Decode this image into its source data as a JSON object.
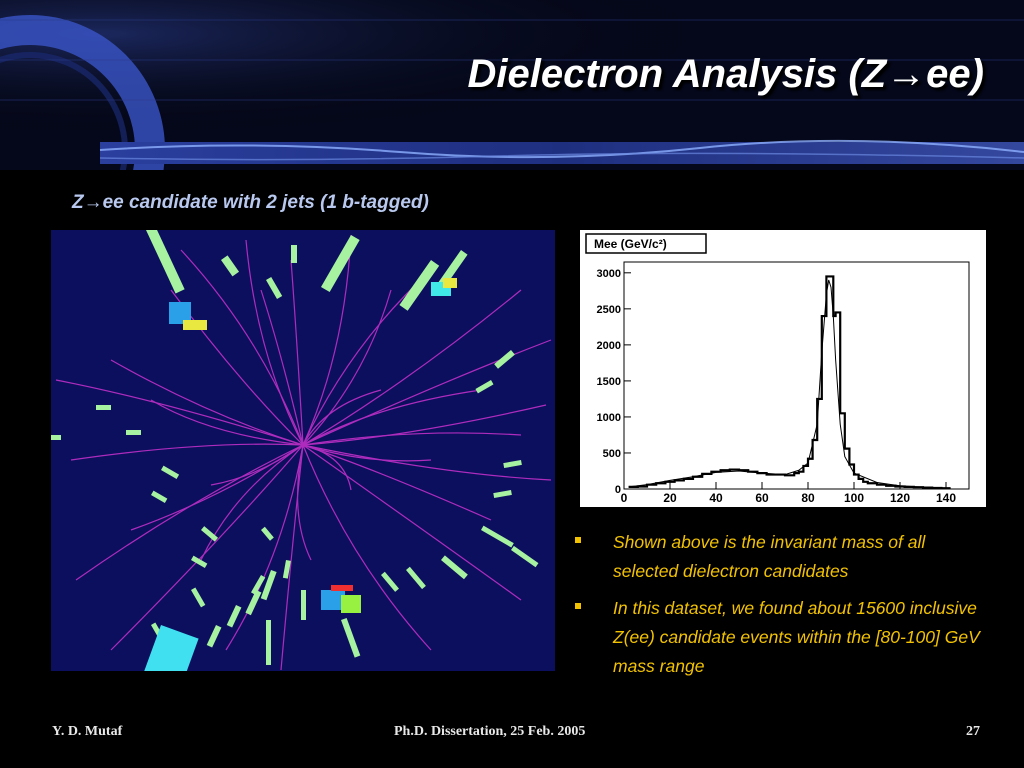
{
  "slide": {
    "title": "Dielectron Analysis (Z→ee)",
    "subtitle": "Z→ee candidate with 2 jets (1 b-tagged)"
  },
  "histogram": {
    "label": "Mee (GeV/c²)",
    "x_ticks": [
      "0",
      "20",
      "40",
      "60",
      "80",
      "100",
      "120",
      "140"
    ],
    "y_ticks": [
      "0",
      "500",
      "1000",
      "1500",
      "2000",
      "2500",
      "3000"
    ]
  },
  "chart_data": {
    "type": "line",
    "title": "Mee (GeV/c²)",
    "xlabel": "",
    "ylabel": "",
    "xlim": [
      0,
      150
    ],
    "ylim": [
      0,
      3150
    ],
    "series": [
      {
        "x": [
          2,
          6,
          10,
          14,
          18,
          22,
          26,
          30,
          34,
          38,
          42,
          46,
          50,
          54,
          58,
          62,
          66,
          70,
          74,
          76,
          78,
          80,
          82,
          84,
          86,
          88,
          89,
          90,
          91,
          92,
          94,
          96,
          98,
          100,
          102,
          104,
          106,
          110,
          114,
          118,
          122,
          126,
          130,
          134,
          138,
          142
        ],
        "y": [
          30,
          35,
          60,
          80,
          100,
          120,
          140,
          170,
          210,
          240,
          260,
          270,
          260,
          240,
          220,
          200,
          200,
          190,
          220,
          240,
          320,
          420,
          680,
          1250,
          2400,
          2950,
          2950,
          2950,
          2400,
          2450,
          1050,
          560,
          340,
          200,
          140,
          100,
          80,
          60,
          45,
          35,
          30,
          25,
          20,
          15,
          10,
          10
        ]
      },
      {
        "x": [
          2,
          10,
          20,
          30,
          40,
          50,
          60,
          70,
          76,
          80,
          84,
          86,
          88,
          89,
          90,
          91,
          92,
          94,
          96,
          100,
          110,
          120,
          130,
          142
        ],
        "y": [
          30,
          60,
          120,
          170,
          230,
          250,
          220,
          200,
          260,
          360,
          900,
          1900,
          2700,
          2900,
          2800,
          2400,
          1800,
          900,
          450,
          220,
          90,
          45,
          25,
          10
        ]
      }
    ]
  },
  "notes": [
    "Shown above is the invariant mass of all selected dielectron candidates",
    "In this dataset, we found about 15600 inclusive Z(ee) candidate events within the [80-100] GeV mass range"
  ],
  "footer": {
    "author": "Y. D. Mutaf",
    "center": "Ph.D. Dissertation, 25 Feb. 2005",
    "page": "27"
  },
  "colors": {
    "background": "#000000",
    "title": "#ffffff",
    "subtitle": "#b8c8ee",
    "notes": "#f2c200",
    "event_background": "#0c0f5e",
    "tracks": "#c030c8"
  }
}
